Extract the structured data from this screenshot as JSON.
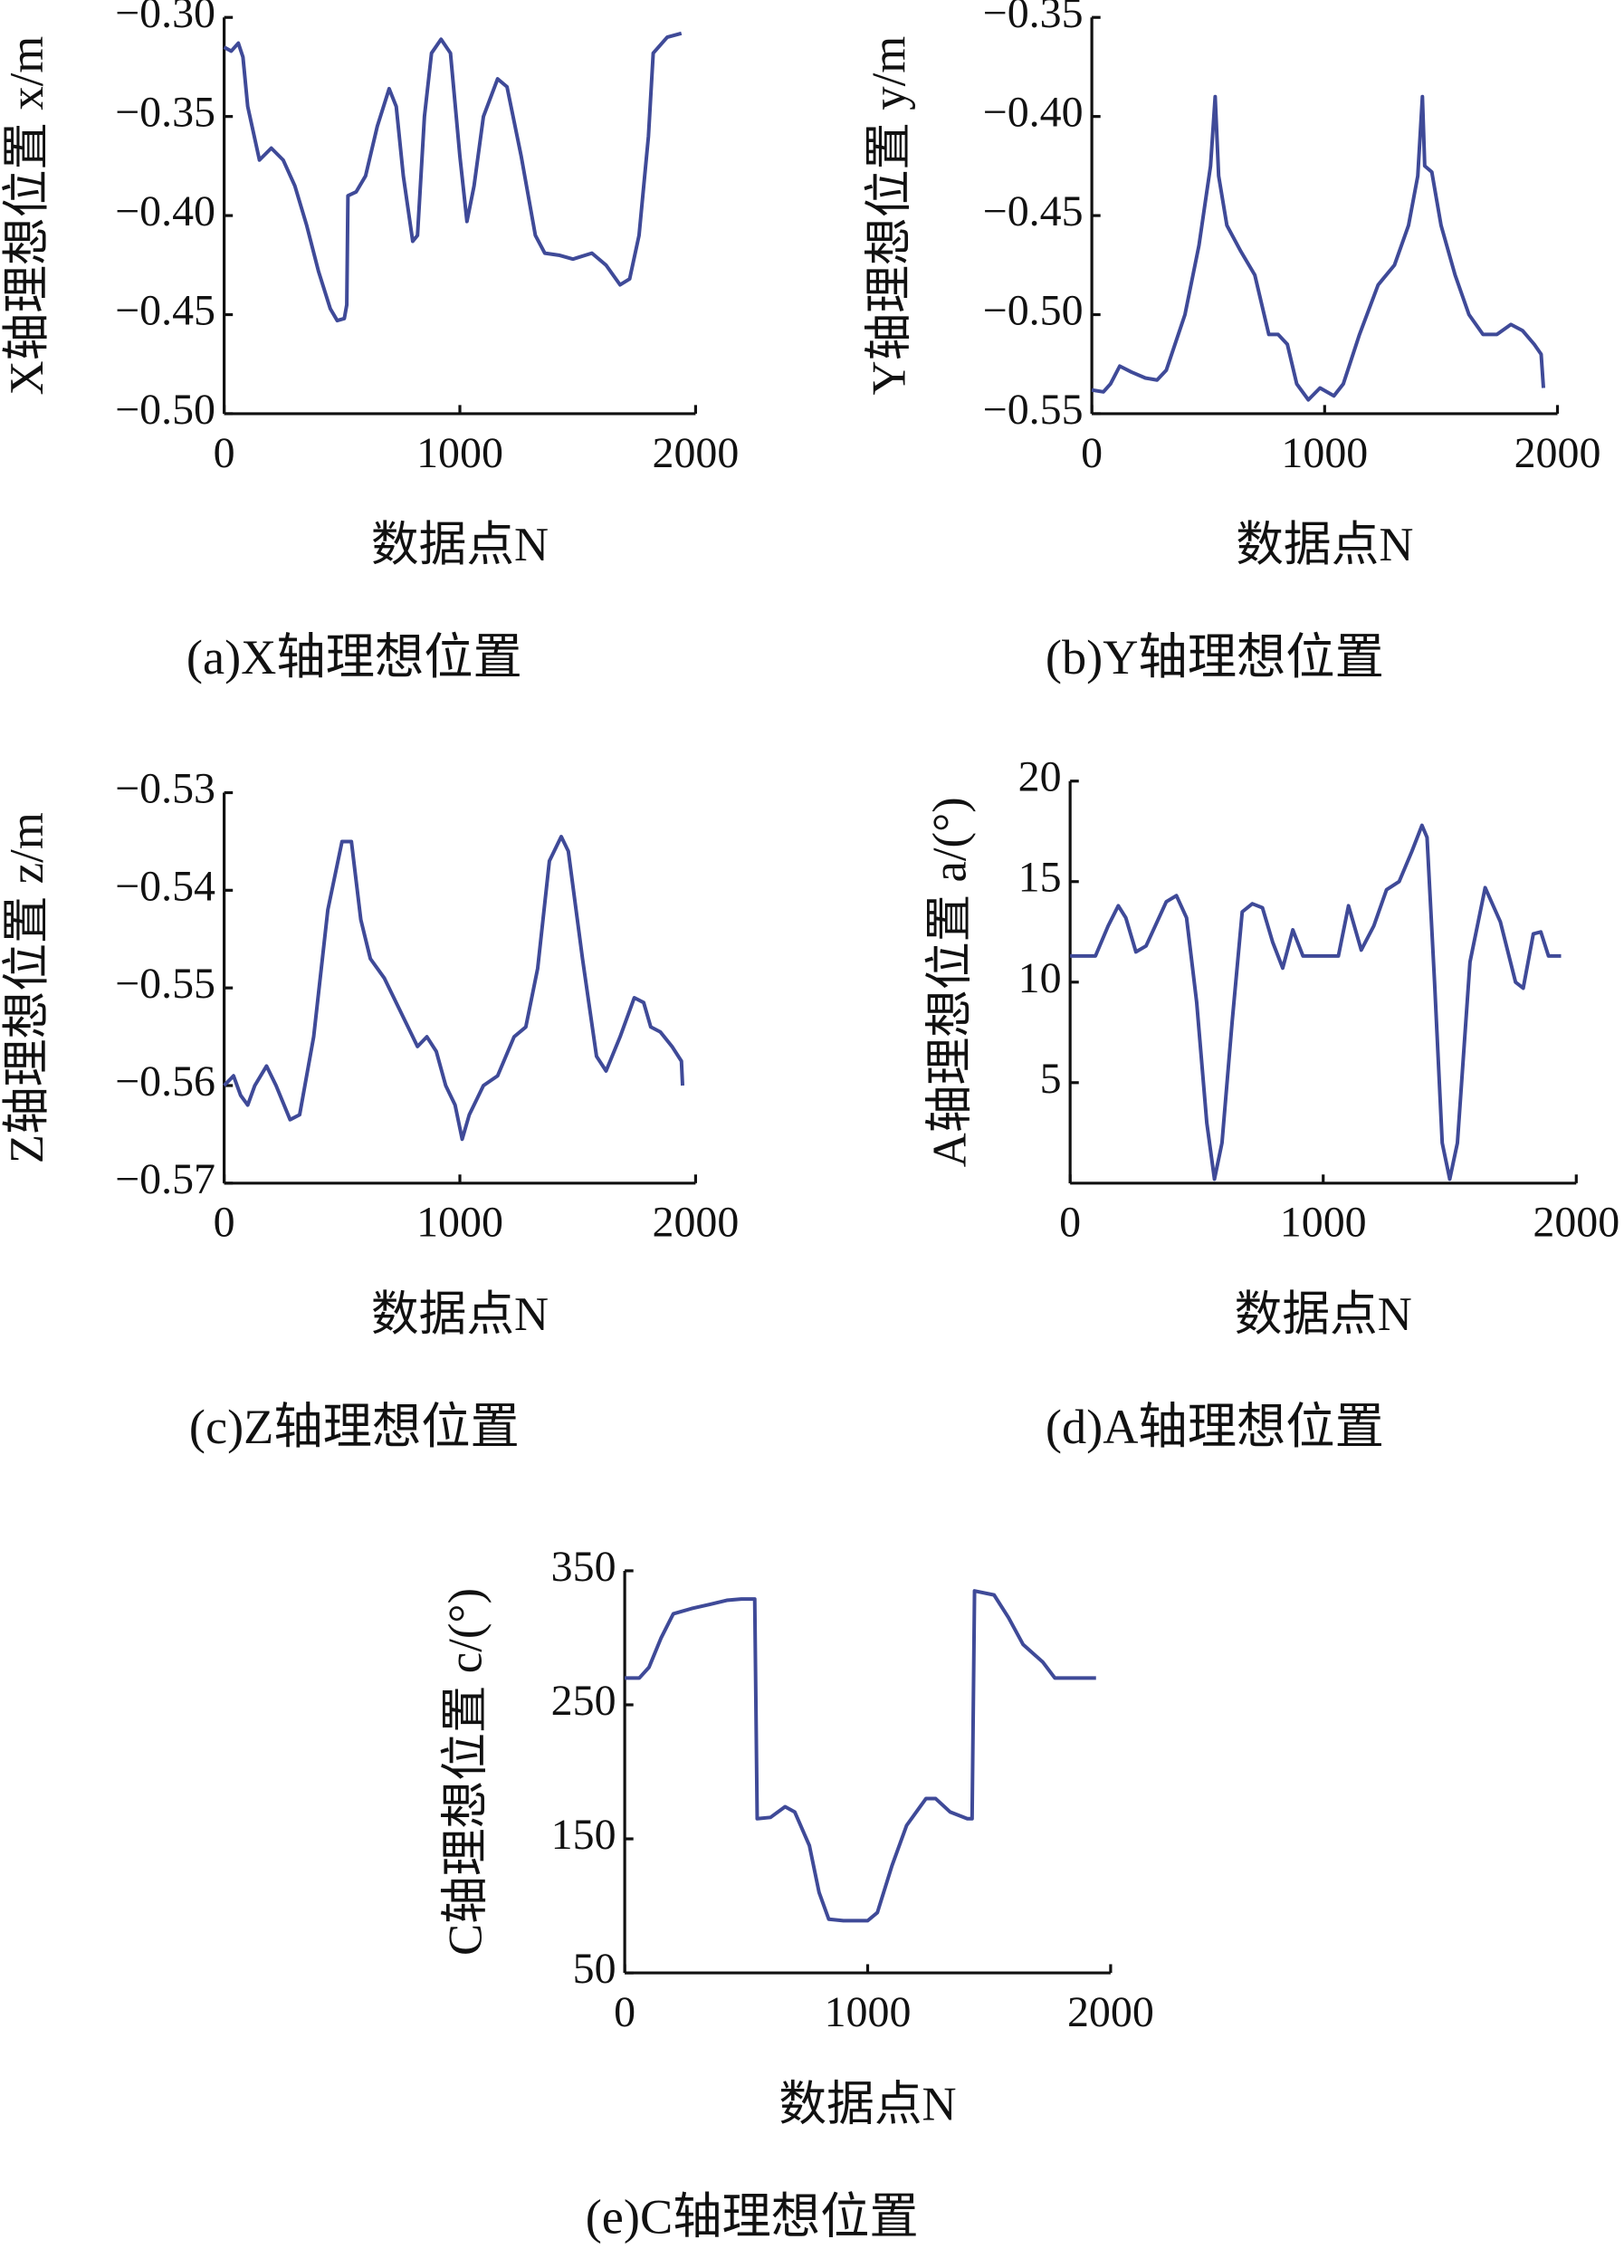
{
  "chart_data": [
    {
      "type": "line",
      "caption": "(a)X轴理想位置",
      "y_label": "X轴理想位置 x/m",
      "x_label": "数据点N",
      "xlim": [
        0,
        2000
      ],
      "xticks": [
        0,
        1000,
        2000
      ],
      "ylim": [
        -0.5,
        -0.3
      ],
      "yticks": [
        {
          "value": -0.5,
          "label": "−0.50"
        },
        {
          "value": -0.45,
          "label": "−0.45"
        },
        {
          "value": -0.4,
          "label": "−0.40"
        },
        {
          "value": -0.35,
          "label": "−0.35"
        },
        {
          "value": -0.3,
          "label": "−0.30"
        }
      ],
      "color": "#3f4a98",
      "x": [
        0,
        30,
        60,
        80,
        100,
        150,
        200,
        250,
        300,
        350,
        400,
        450,
        480,
        510,
        520,
        525,
        560,
        600,
        650,
        700,
        730,
        760,
        800,
        820,
        850,
        880,
        920,
        960,
        1000,
        1030,
        1060,
        1100,
        1160,
        1200,
        1260,
        1320,
        1360,
        1420,
        1480,
        1560,
        1620,
        1680,
        1720,
        1760,
        1800,
        1820,
        1880,
        1940
      ],
      "values": [
        -0.315,
        -0.317,
        -0.313,
        -0.32,
        -0.345,
        -0.372,
        -0.366,
        -0.372,
        -0.385,
        -0.405,
        -0.428,
        -0.447,
        -0.453,
        -0.452,
        -0.445,
        -0.39,
        -0.388,
        -0.38,
        -0.355,
        -0.336,
        -0.345,
        -0.38,
        -0.413,
        -0.41,
        -0.35,
        -0.318,
        -0.311,
        -0.318,
        -0.37,
        -0.403,
        -0.385,
        -0.35,
        -0.331,
        -0.335,
        -0.37,
        -0.41,
        -0.419,
        -0.42,
        -0.422,
        -0.419,
        -0.425,
        -0.435,
        -0.432,
        -0.41,
        -0.36,
        -0.318,
        -0.31,
        -0.308
      ]
    },
    {
      "type": "line",
      "caption": "(b)Y轴理想位置",
      "y_label": "Y轴理想位置 y/m",
      "x_label": "数据点N",
      "xlim": [
        0,
        2000
      ],
      "xticks": [
        0,
        1000,
        2000
      ],
      "ylim": [
        -0.55,
        -0.35
      ],
      "yticks": [
        {
          "value": -0.55,
          "label": "−0.55"
        },
        {
          "value": -0.5,
          "label": "−0.50"
        },
        {
          "value": -0.45,
          "label": "−0.45"
        },
        {
          "value": -0.4,
          "label": "−0.40"
        },
        {
          "value": -0.35,
          "label": "−0.35"
        }
      ],
      "color": "#3f4a98",
      "x": [
        0,
        50,
        80,
        120,
        170,
        230,
        280,
        320,
        400,
        460,
        510,
        530,
        545,
        580,
        640,
        700,
        760,
        800,
        840,
        880,
        930,
        980,
        1040,
        1080,
        1150,
        1230,
        1300,
        1360,
        1400,
        1420,
        1430,
        1460,
        1500,
        1560,
        1620,
        1680,
        1740,
        1800,
        1850,
        1900,
        1930,
        1940
      ],
      "values": [
        -0.538,
        -0.539,
        -0.535,
        -0.526,
        -0.529,
        -0.532,
        -0.533,
        -0.528,
        -0.5,
        -0.465,
        -0.425,
        -0.39,
        -0.43,
        -0.455,
        -0.468,
        -0.48,
        -0.51,
        -0.51,
        -0.515,
        -0.535,
        -0.543,
        -0.537,
        -0.541,
        -0.535,
        -0.51,
        -0.485,
        -0.475,
        -0.455,
        -0.43,
        -0.39,
        -0.425,
        -0.428,
        -0.455,
        -0.48,
        -0.5,
        -0.51,
        -0.51,
        -0.505,
        -0.508,
        -0.515,
        -0.52,
        -0.537
      ]
    },
    {
      "type": "line",
      "caption": "(c)Z轴理想位置",
      "y_label": "Z轴理想位置 z/m",
      "x_label": "数据点N",
      "xlim": [
        0,
        2000
      ],
      "xticks": [
        0,
        1000,
        2000
      ],
      "ylim": [
        -0.57,
        -0.53
      ],
      "yticks": [
        {
          "value": -0.57,
          "label": "−0.57"
        },
        {
          "value": -0.56,
          "label": "−0.56"
        },
        {
          "value": -0.55,
          "label": "−0.55"
        },
        {
          "value": -0.54,
          "label": "−0.54"
        },
        {
          "value": -0.53,
          "label": "−0.53"
        }
      ],
      "color": "#3f4a98",
      "x": [
        0,
        40,
        70,
        100,
        130,
        180,
        220,
        280,
        320,
        380,
        440,
        500,
        540,
        580,
        620,
        680,
        760,
        820,
        860,
        900,
        940,
        980,
        1010,
        1040,
        1100,
        1160,
        1230,
        1280,
        1330,
        1380,
        1430,
        1460,
        1520,
        1580,
        1620,
        1680,
        1740,
        1780,
        1810,
        1850,
        1900,
        1940,
        1945
      ],
      "values": [
        -0.56,
        -0.559,
        -0.561,
        -0.562,
        -0.56,
        -0.558,
        -0.56,
        -0.5635,
        -0.563,
        -0.555,
        -0.542,
        -0.535,
        -0.535,
        -0.543,
        -0.547,
        -0.549,
        -0.553,
        -0.556,
        -0.555,
        -0.5565,
        -0.56,
        -0.562,
        -0.5655,
        -0.563,
        -0.56,
        -0.559,
        -0.555,
        -0.554,
        -0.548,
        -0.537,
        -0.5345,
        -0.536,
        -0.547,
        -0.557,
        -0.5585,
        -0.555,
        -0.551,
        -0.5515,
        -0.554,
        -0.5545,
        -0.556,
        -0.5575,
        -0.56
      ]
    },
    {
      "type": "line",
      "caption": "(d)A轴理想位置",
      "y_label": "A轴理想位置 a/(°)",
      "x_label": "数据点N",
      "xlim": [
        0,
        2000
      ],
      "xticks": [
        0,
        1000,
        2000
      ],
      "ylim": [
        0,
        20
      ],
      "yticks": [
        5,
        10,
        15,
        20
      ],
      "color": "#3f4a98",
      "x": [
        0,
        100,
        150,
        190,
        220,
        260,
        300,
        380,
        420,
        460,
        500,
        540,
        570,
        600,
        640,
        680,
        720,
        760,
        800,
        840,
        880,
        920,
        1000,
        1060,
        1100,
        1150,
        1200,
        1250,
        1300,
        1350,
        1390,
        1410,
        1440,
        1470,
        1500,
        1530,
        1580,
        1640,
        1700,
        1760,
        1790,
        1830,
        1860,
        1890,
        1940
      ],
      "values": [
        11.3,
        11.3,
        12.8,
        13.8,
        13.2,
        11.5,
        11.8,
        14,
        14.3,
        13.2,
        9,
        3,
        0.2,
        2,
        8,
        13.5,
        13.9,
        13.7,
        12,
        10.7,
        12.6,
        11.3,
        11.3,
        11.3,
        13.8,
        11.6,
        12.8,
        14.6,
        15,
        16.5,
        17.8,
        17.2,
        10,
        2,
        0.2,
        2,
        11,
        14.7,
        13,
        10,
        9.7,
        12.4,
        12.5,
        11.3,
        11.3
      ]
    },
    {
      "type": "line",
      "caption": "(e)C轴理想位置",
      "y_label": "C轴理想位置 c/(°)",
      "x_label": "数据点N",
      "xlim": [
        0,
        2000
      ],
      "xticks": [
        0,
        1000,
        2000
      ],
      "ylim": [
        50,
        350
      ],
      "yticks": [
        50,
        150,
        250,
        350
      ],
      "color": "#3f4a98",
      "x": [
        0,
        60,
        100,
        150,
        200,
        280,
        350,
        420,
        480,
        535,
        545,
        600,
        660,
        700,
        760,
        800,
        840,
        900,
        1000,
        1040,
        1100,
        1160,
        1240,
        1280,
        1340,
        1410,
        1430,
        1440,
        1520,
        1580,
        1640,
        1720,
        1770,
        1940
      ],
      "values": [
        270,
        270,
        278,
        300,
        318,
        322,
        325,
        328,
        329,
        329,
        165,
        166,
        174,
        170,
        145,
        110,
        90,
        89,
        89,
        95,
        130,
        160,
        180,
        180,
        170,
        165,
        165,
        335,
        332,
        315,
        295,
        282,
        270,
        270
      ]
    }
  ]
}
